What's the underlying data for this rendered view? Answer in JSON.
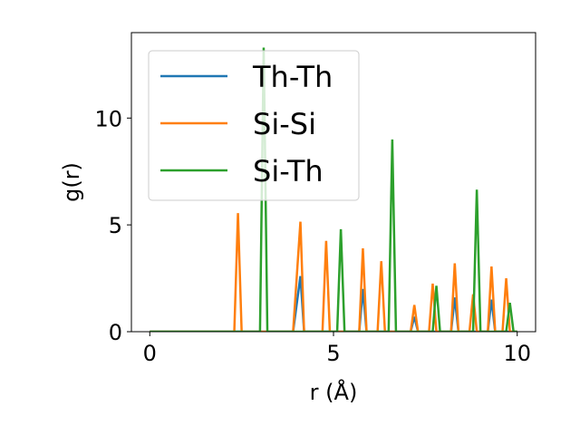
{
  "chart_data": {
    "type": "line",
    "title": "",
    "xlabel": "r (Å)",
    "ylabel": "g(r)",
    "xlim": [
      -0.5,
      10.5
    ],
    "ylim": [
      0,
      14
    ],
    "xticks": [
      0,
      5,
      10
    ],
    "xtick_labels": [
      "0",
      "5",
      "10"
    ],
    "yticks": [
      0,
      5,
      10
    ],
    "ytick_labels": [
      "0",
      "5",
      "10"
    ],
    "grid": false,
    "legend_position": "top-left",
    "series": [
      {
        "name": "Th-Th",
        "color": "#1f77b4",
        "points": [
          [
            0,
            0
          ],
          [
            3.9,
            0
          ],
          [
            4.1,
            2.6
          ],
          [
            4.2,
            0
          ],
          [
            5.7,
            0
          ],
          [
            5.8,
            2.0
          ],
          [
            5.9,
            0
          ],
          [
            7.1,
            0
          ],
          [
            7.2,
            0.7
          ],
          [
            7.3,
            0
          ],
          [
            8.2,
            0
          ],
          [
            8.3,
            1.6
          ],
          [
            8.4,
            0
          ],
          [
            9.2,
            0
          ],
          [
            9.3,
            1.5
          ],
          [
            9.4,
            0
          ],
          [
            10,
            0
          ]
        ]
      },
      {
        "name": "Si-Si",
        "color": "#ff7f0e",
        "points": [
          [
            0,
            0
          ],
          [
            2.3,
            0
          ],
          [
            2.4,
            5.55
          ],
          [
            2.5,
            0
          ],
          [
            3.9,
            0
          ],
          [
            4.1,
            5.15
          ],
          [
            4.2,
            0
          ],
          [
            4.7,
            0
          ],
          [
            4.8,
            4.25
          ],
          [
            4.9,
            0
          ],
          [
            5.7,
            0
          ],
          [
            5.8,
            3.9
          ],
          [
            5.9,
            0
          ],
          [
            6.2,
            0
          ],
          [
            6.3,
            3.3
          ],
          [
            6.4,
            0
          ],
          [
            7.1,
            0
          ],
          [
            7.2,
            1.25
          ],
          [
            7.3,
            0
          ],
          [
            7.6,
            0
          ],
          [
            7.7,
            2.25
          ],
          [
            7.8,
            0
          ],
          [
            8.2,
            0
          ],
          [
            8.3,
            3.2
          ],
          [
            8.4,
            0
          ],
          [
            8.7,
            0
          ],
          [
            8.8,
            1.75
          ],
          [
            8.9,
            0
          ],
          [
            9.2,
            0
          ],
          [
            9.3,
            3.05
          ],
          [
            9.4,
            0
          ],
          [
            9.6,
            0
          ],
          [
            9.7,
            2.5
          ],
          [
            9.8,
            0
          ],
          [
            10,
            0
          ]
        ]
      },
      {
        "name": "Si-Th",
        "color": "#2ca02c",
        "points": [
          [
            0,
            0
          ],
          [
            3.0,
            0
          ],
          [
            3.1,
            13.3
          ],
          [
            3.2,
            0
          ],
          [
            5.1,
            0
          ],
          [
            5.2,
            4.8
          ],
          [
            5.3,
            0
          ],
          [
            6.5,
            0
          ],
          [
            6.6,
            9.0
          ],
          [
            6.7,
            0
          ],
          [
            7.7,
            0
          ],
          [
            7.8,
            2.15
          ],
          [
            7.9,
            0
          ],
          [
            8.8,
            0
          ],
          [
            8.9,
            6.65
          ],
          [
            9.0,
            0
          ],
          [
            9.7,
            0
          ],
          [
            9.8,
            1.35
          ],
          [
            9.9,
            0
          ],
          [
            10,
            0
          ]
        ]
      }
    ]
  }
}
